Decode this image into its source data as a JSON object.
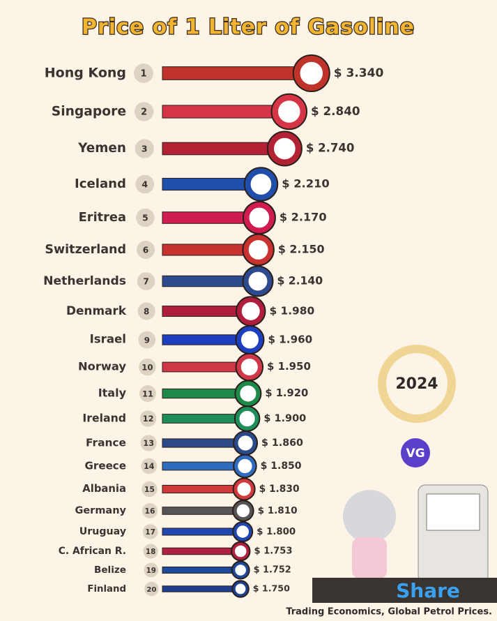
{
  "chart_data": {
    "type": "bar",
    "orientation": "horizontal",
    "title": "Price of 1 Liter of Gasoline",
    "categories": [
      "Hong Kong",
      "Singapore",
      "Yemen",
      "Iceland",
      "Eritrea",
      "Switzerland",
      "Netherlands",
      "Denmark",
      "Israel",
      "Norway",
      "Italy",
      "Ireland",
      "France",
      "Greece",
      "Albania",
      "Germany",
      "Uruguay",
      "C. African R.",
      "Belize",
      "Finland"
    ],
    "ranks": [
      1,
      2,
      3,
      4,
      5,
      6,
      7,
      8,
      9,
      10,
      11,
      12,
      13,
      14,
      15,
      16,
      17,
      18,
      19,
      20
    ],
    "values": [
      3.34,
      2.84,
      2.74,
      2.21,
      2.17,
      2.15,
      2.14,
      1.98,
      1.96,
      1.95,
      1.92,
      1.9,
      1.86,
      1.85,
      1.83,
      1.81,
      1.8,
      1.753,
      1.752,
      1.75
    ],
    "value_labels": [
      "$ 3.340",
      "$ 2.840",
      "$ 2.740",
      "$ 2.210",
      "$ 2.170",
      "$ 2.150",
      "$ 2.140",
      "$ 1.980",
      "$ 1.960",
      "$ 1.950",
      "$ 1.920",
      "$ 1.900",
      "$ 1.860",
      "$ 1.850",
      "$ 1.830",
      "$ 1.810",
      "$ 1.800",
      "$ 1.753",
      "$ 1.752",
      "$ 1.750"
    ],
    "colors": [
      "#c0332b",
      "#d63447",
      "#b22234",
      "#1f4fa8",
      "#d01c4f",
      "#c8322f",
      "#2e4a8f",
      "#b01e3e",
      "#1e40c0",
      "#d0384a",
      "#1e8a4a",
      "#1f8f5a",
      "#2b4a8a",
      "#2e6cc0",
      "#d03a3a",
      "#555555",
      "#2046b0",
      "#b02040",
      "#1f4a9a",
      "#1f3f8f"
    ],
    "xlim": [
      0,
      3.5
    ]
  },
  "badge": "2024",
  "logo": "VG",
  "share": "Share",
  "source": "Trading Economics, Global Petrol Prices."
}
